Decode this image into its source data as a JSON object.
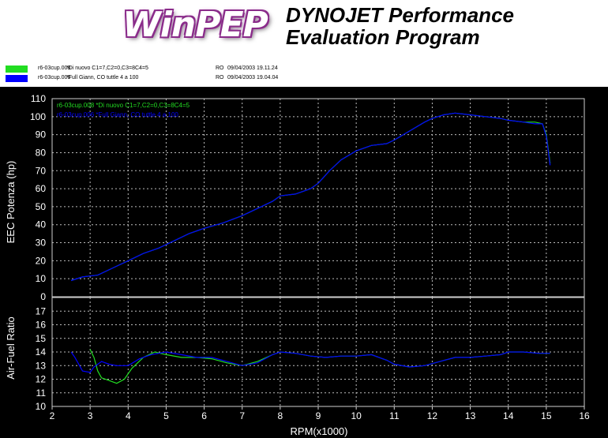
{
  "header": {
    "logo_text": "WinPEP",
    "program_line1": "DYNOJET Performance",
    "program_line2": "Evaluation Program"
  },
  "runs": [
    {
      "file": "r6-03cup.008",
      "description": "*Di nuovo C1=7,C2=0,C3=8C4=5",
      "operator": "RO",
      "datetime": "09/04/2003 19.11.24",
      "color": "#22dd22"
    },
    {
      "file": "r6-03cup.006",
      "description": "*Full Giann, CO tuttle 4 a 100",
      "operator": "RO",
      "datetime": "09/04/2003 19.04.04",
      "color": "#0000ff"
    }
  ],
  "legend": [
    {
      "text": "r6-03cup.008   *Di nuovo C1=7,C2=0,C3=8C4=5",
      "color": "#22dd22"
    },
    {
      "text": "r6-03cup.006   *Full Giann, CO tuttle 4 a 100",
      "color": "#0000ff"
    }
  ],
  "chart_data": [
    {
      "type": "line",
      "ylabel": "EEC Potenza (hp)",
      "ylim": [
        0,
        110
      ],
      "yticks": [
        0,
        10,
        20,
        30,
        40,
        50,
        60,
        70,
        80,
        90,
        100,
        110
      ],
      "xlim": [
        2,
        16
      ],
      "grid": true,
      "series": [
        {
          "name": "r6-03cup.008",
          "color": "#22dd22",
          "x": [
            2.5,
            2.8,
            3.2,
            3.6,
            4.0,
            4.4,
            4.8,
            5.2,
            5.6,
            6.0,
            6.5,
            7.0,
            7.4,
            7.8,
            8.0,
            8.4,
            8.8,
            9.0,
            9.3,
            9.6,
            10.0,
            10.4,
            10.8,
            11.0,
            11.4,
            11.8,
            12.0,
            12.3,
            12.6,
            13.0,
            13.4,
            13.8,
            14.0,
            14.4,
            14.7,
            14.9,
            15.0,
            15.1
          ],
          "y": [
            9,
            11,
            12,
            16,
            20,
            24,
            27,
            31,
            35,
            38,
            41,
            45,
            49,
            53,
            56,
            57,
            60,
            63,
            70,
            76,
            81,
            84,
            85,
            87,
            92,
            97,
            99,
            101,
            102,
            101,
            100,
            99,
            98,
            97,
            97,
            96,
            90,
            74
          ]
        },
        {
          "name": "r6-03cup.006",
          "color": "#0000ff",
          "x": [
            2.5,
            2.8,
            3.2,
            3.6,
            4.0,
            4.4,
            4.8,
            5.2,
            5.6,
            6.0,
            6.5,
            7.0,
            7.4,
            7.8,
            8.0,
            8.4,
            8.8,
            9.0,
            9.3,
            9.6,
            10.0,
            10.4,
            10.8,
            11.0,
            11.4,
            11.8,
            12.0,
            12.3,
            12.6,
            13.0,
            13.4,
            13.8,
            14.0,
            14.4,
            14.7,
            14.9,
            15.0,
            15.1
          ],
          "y": [
            9,
            11,
            12,
            16,
            20,
            24,
            27,
            31,
            35,
            38,
            41,
            45,
            49,
            53,
            56,
            57,
            60,
            63,
            70,
            76,
            81,
            84,
            85,
            87,
            92,
            97,
            99,
            101,
            102,
            101,
            100,
            99,
            98,
            97,
            96,
            96,
            89,
            73
          ]
        }
      ]
    },
    {
      "type": "line",
      "ylabel": "Air-Fuel Ratio",
      "xlabel": "RPM(x1000)",
      "ylim": [
        10,
        18
      ],
      "yticks": [
        10,
        11,
        12,
        13,
        14,
        15,
        16,
        17
      ],
      "xlim": [
        2,
        16
      ],
      "xticks": [
        2,
        3,
        4,
        5,
        6,
        7,
        8,
        9,
        10,
        11,
        12,
        13,
        14,
        15,
        16
      ],
      "grid": true,
      "series": [
        {
          "name": "r6-03cup.008",
          "color": "#22dd22",
          "x": [
            3.0,
            3.1,
            3.2,
            3.3,
            3.5,
            3.7,
            3.9,
            4.1,
            4.4,
            4.7,
            5.0,
            5.4,
            5.8,
            6.2,
            6.6,
            7.0,
            7.4,
            7.8,
            8.0,
            8.4,
            8.8,
            9.2,
            9.6,
            10.0,
            10.4,
            10.8,
            11.0,
            11.4,
            11.8,
            12.2,
            12.6,
            13.0,
            13.4,
            13.8,
            14.0,
            14.4,
            14.8,
            15.1
          ],
          "y": [
            14.2,
            13.6,
            12.6,
            12.1,
            11.9,
            11.7,
            12.0,
            12.8,
            13.6,
            14.0,
            13.8,
            13.6,
            13.6,
            13.5,
            13.2,
            13.0,
            13.3,
            13.8,
            14.0,
            13.9,
            13.7,
            13.6,
            13.7,
            13.7,
            13.8,
            13.4,
            13.1,
            12.9,
            13.0,
            13.3,
            13.6,
            13.6,
            13.7,
            13.8,
            14.0,
            14.0,
            13.9,
            13.9
          ]
        },
        {
          "name": "r6-03cup.006",
          "color": "#0000ff",
          "x": [
            2.5,
            2.6,
            2.8,
            3.0,
            3.1,
            3.3,
            3.5,
            3.7,
            4.0,
            4.3,
            4.6,
            5.0,
            5.4,
            5.8,
            6.2,
            6.6,
            7.0,
            7.4,
            7.8,
            8.0,
            8.4,
            8.8,
            9.2,
            9.6,
            10.0,
            10.4,
            10.8,
            11.0,
            11.4,
            11.8,
            12.2,
            12.6,
            13.0,
            13.4,
            13.8,
            14.0,
            14.4,
            14.8,
            15.1
          ],
          "y": [
            14.0,
            13.6,
            12.6,
            12.5,
            12.9,
            13.3,
            13.1,
            13.0,
            13.0,
            13.5,
            13.8,
            14.0,
            13.8,
            13.6,
            13.6,
            13.3,
            13.0,
            13.2,
            13.8,
            14.0,
            13.9,
            13.7,
            13.6,
            13.7,
            13.7,
            13.8,
            13.4,
            13.1,
            12.9,
            13.0,
            13.3,
            13.6,
            13.6,
            13.7,
            13.8,
            14.0,
            14.0,
            13.9,
            13.9
          ]
        }
      ]
    }
  ]
}
